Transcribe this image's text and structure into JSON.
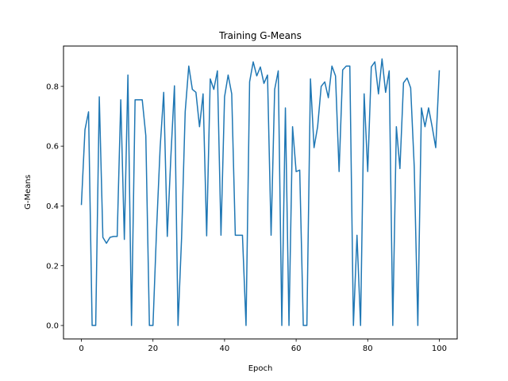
{
  "chart_data": {
    "type": "line",
    "title": "Training G-Means",
    "xlabel": "Epoch",
    "ylabel": "G-Means",
    "xlim": [
      -5,
      105
    ],
    "ylim": [
      -0.045,
      0.935
    ],
    "grid": false,
    "x_ticks": [
      0,
      20,
      40,
      60,
      80,
      100
    ],
    "x_tick_labels": [
      "0",
      "20",
      "40",
      "60",
      "80",
      "100"
    ],
    "y_ticks": [
      0.0,
      0.2,
      0.4,
      0.6,
      0.8
    ],
    "y_tick_labels": [
      "0.0",
      "0.2",
      "0.4",
      "0.6",
      "0.8"
    ],
    "series": [
      {
        "color": "#1f77b4",
        "x": [
          0,
          1,
          2,
          3,
          4,
          5,
          6,
          7,
          8,
          9,
          10,
          11,
          12,
          13,
          14,
          15,
          16,
          17,
          18,
          19,
          20,
          21,
          22,
          23,
          24,
          25,
          26,
          27,
          28,
          29,
          30,
          31,
          32,
          33,
          34,
          35,
          36,
          37,
          38,
          39,
          40,
          41,
          42,
          43,
          44,
          45,
          46,
          47,
          48,
          49,
          50,
          51,
          52,
          53,
          54,
          55,
          56,
          57,
          58,
          59,
          60,
          61,
          62,
          63,
          64,
          65,
          66,
          67,
          68,
          69,
          70,
          71,
          72,
          73,
          74,
          75,
          76,
          77,
          78,
          79,
          80,
          81,
          82,
          83,
          84,
          85,
          86,
          87,
          88,
          89,
          90,
          91,
          92,
          93,
          94,
          95,
          96,
          97,
          98,
          99,
          100
        ],
        "values": [
          0.405,
          0.655,
          0.715,
          0.0,
          0.0,
          0.765,
          0.295,
          0.275,
          0.295,
          0.298,
          0.298,
          0.755,
          0.288,
          0.838,
          0.0,
          0.755,
          0.755,
          0.755,
          0.635,
          0.0,
          0.0,
          0.32,
          0.595,
          0.78,
          0.298,
          0.565,
          0.802,
          0.0,
          0.295,
          0.715,
          0.868,
          0.79,
          0.78,
          0.665,
          0.775,
          0.3,
          0.825,
          0.79,
          0.852,
          0.302,
          0.765,
          0.838,
          0.775,
          0.302,
          0.302,
          0.302,
          0.0,
          0.815,
          0.882,
          0.835,
          0.865,
          0.81,
          0.838,
          0.302,
          0.79,
          0.852,
          0.0,
          0.728,
          0.0,
          0.665,
          0.515,
          0.52,
          0.0,
          0.0,
          0.825,
          0.595,
          0.665,
          0.8,
          0.815,
          0.762,
          0.868,
          0.835,
          0.515,
          0.855,
          0.868,
          0.868,
          0.0,
          0.302,
          0.0,
          0.775,
          0.515,
          0.865,
          0.882,
          0.775,
          0.892,
          0.78,
          0.852,
          0.0,
          0.665,
          0.525,
          0.812,
          0.828,
          0.795,
          0.53,
          0.0,
          0.728,
          0.665,
          0.728,
          0.665,
          0.595,
          0.852
        ]
      }
    ]
  }
}
